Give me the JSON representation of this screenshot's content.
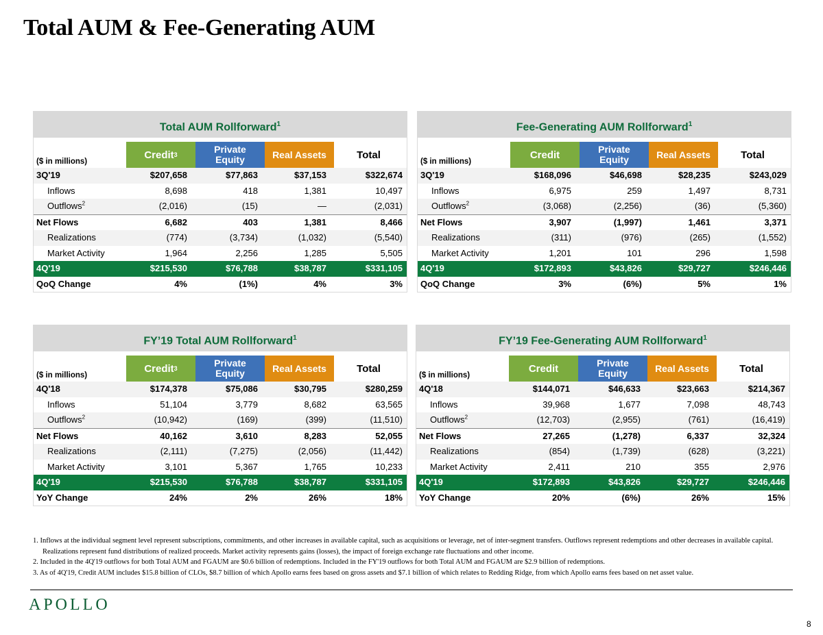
{
  "page_title": "Total AUM & Fee-Generating AUM",
  "units_label": "($ in millions)",
  "col_headers": {
    "credit": "Credit",
    "pe_line1": "Private",
    "pe_line2": "Equity",
    "ra": "Real Assets",
    "total": "Total",
    "fn3": "3"
  },
  "fn1": "1",
  "fn2": "2",
  "panels": [
    {
      "title": "Total AUM Rollforward",
      "rows": [
        {
          "label": "3Q'19",
          "v": [
            "$207,658",
            "$77,863",
            "$37,153",
            "$322,674"
          ]
        },
        {
          "label": "Inflows",
          "v": [
            "8,698",
            "418",
            "1,381",
            "10,497"
          ]
        },
        {
          "label": "Outflows",
          "v": [
            "(2,016)",
            "(15)",
            "—",
            "(2,031)"
          ]
        },
        {
          "label": "Net Flows",
          "v": [
            "6,682",
            "403",
            "1,381",
            "8,466"
          ]
        },
        {
          "label": "Realizations",
          "v": [
            "(774)",
            "(3,734)",
            "(1,032)",
            "(5,540)"
          ]
        },
        {
          "label": "Market Activity",
          "v": [
            "1,964",
            "2,256",
            "1,285",
            "5,505"
          ]
        },
        {
          "label": "4Q'19",
          "v": [
            "$215,530",
            "$76,788",
            "$38,787",
            "$331,105"
          ]
        },
        {
          "label": "QoQ Change",
          "v": [
            "4%",
            "(1%)",
            "4%",
            "3%"
          ]
        }
      ]
    },
    {
      "title": "Fee-Generating AUM Rollforward",
      "rows": [
        {
          "label": "3Q'19",
          "v": [
            "$168,096",
            "$46,698",
            "$28,235",
            "$243,029"
          ]
        },
        {
          "label": "Inflows",
          "v": [
            "6,975",
            "259",
            "1,497",
            "8,731"
          ]
        },
        {
          "label": "Outflows",
          "v": [
            "(3,068)",
            "(2,256)",
            "(36)",
            "(5,360)"
          ]
        },
        {
          "label": "Net Flows",
          "v": [
            "3,907",
            "(1,997)",
            "1,461",
            "3,371"
          ]
        },
        {
          "label": "Realizations",
          "v": [
            "(311)",
            "(976)",
            "(265)",
            "(1,552)"
          ]
        },
        {
          "label": "Market Activity",
          "v": [
            "1,201",
            "101",
            "296",
            "1,598"
          ]
        },
        {
          "label": "4Q'19",
          "v": [
            "$172,893",
            "$43,826",
            "$29,727",
            "$246,446"
          ]
        },
        {
          "label": "QoQ Change",
          "v": [
            "3%",
            "(6%)",
            "5%",
            "1%"
          ]
        }
      ]
    },
    {
      "title": "FY’19 Total AUM Rollforward",
      "rows": [
        {
          "label": "4Q'18",
          "v": [
            "$174,378",
            "$75,086",
            "$30,795",
            "$280,259"
          ]
        },
        {
          "label": "Inflows",
          "v": [
            "51,104",
            "3,779",
            "8,682",
            "63,565"
          ]
        },
        {
          "label": "Outflows",
          "v": [
            "(10,942)",
            "(169)",
            "(399)",
            "(11,510)"
          ]
        },
        {
          "label": "Net Flows",
          "v": [
            "40,162",
            "3,610",
            "8,283",
            "52,055"
          ]
        },
        {
          "label": "Realizations",
          "v": [
            "(2,111)",
            "(7,275)",
            "(2,056)",
            "(11,442)"
          ]
        },
        {
          "label": "Market Activity",
          "v": [
            "3,101",
            "5,367",
            "1,765",
            "10,233"
          ]
        },
        {
          "label": "4Q'19",
          "v": [
            "$215,530",
            "$76,788",
            "$38,787",
            "$331,105"
          ]
        },
        {
          "label": "YoY Change",
          "v": [
            "24%",
            "2%",
            "26%",
            "18%"
          ]
        }
      ]
    },
    {
      "title": "FY’19 Fee-Generating AUM Rollforward",
      "rows": [
        {
          "label": "4Q'18",
          "v": [
            "$144,071",
            "$46,633",
            "$23,663",
            "$214,367"
          ]
        },
        {
          "label": "Inflows",
          "v": [
            "39,968",
            "1,677",
            "7,098",
            "48,743"
          ]
        },
        {
          "label": "Outflows",
          "v": [
            "(12,703)",
            "(2,955)",
            "(761)",
            "(16,419)"
          ]
        },
        {
          "label": "Net Flows",
          "v": [
            "27,265",
            "(1,278)",
            "6,337",
            "32,324"
          ]
        },
        {
          "label": "Realizations",
          "v": [
            "(854)",
            "(1,739)",
            "(628)",
            "(3,221)"
          ]
        },
        {
          "label": "Market Activity",
          "v": [
            "2,411",
            "210",
            "355",
            "2,976"
          ]
        },
        {
          "label": "4Q'19",
          "v": [
            "$172,893",
            "$43,826",
            "$29,727",
            "$246,446"
          ]
        },
        {
          "label": "YoY Change",
          "v": [
            "20%",
            "(6%)",
            "26%",
            "15%"
          ]
        }
      ]
    }
  ],
  "footnotes": [
    "1.  Inflows at the individual segment level represent subscriptions, commitments, and other increases in available capital, such as acquisitions or leverage, net of inter-segment transfers. Outflows represent redemptions and other decreases in available capital. Realizations represent fund distributions of realized proceeds. Market activity represents gains (losses), the impact of foreign exchange rate fluctuations and other income.",
    "2.  Included in the 4Q'19 outflows for both Total AUM and FGAUM are $0.6 billion of redemptions. Included in the FY'19 outflows for both Total AUM and FGAUM are $2.9 billion of redemptions.",
    "3.  As of 4Q'19, Credit AUM includes $15.8 billion of CLOs, $8.7 billion of which Apollo earns fees based on gross assets and $7.1 billion of which relates to Redding Ridge, from which Apollo earns fees based on net asset value."
  ],
  "logo_text": "APOLLO",
  "page_number": "8",
  "colors": {
    "green": "#0e7d40",
    "credit": "#7cac3f",
    "private_equity": "#3e72b8",
    "real_assets": "#e08c12"
  }
}
